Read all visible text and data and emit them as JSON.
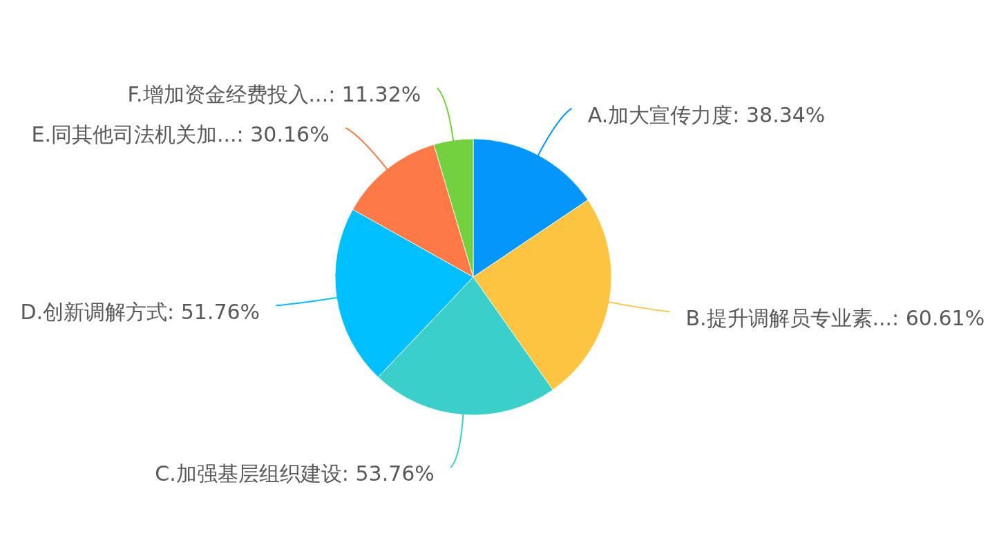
{
  "chart_data": {
    "type": "pie",
    "categories": [
      "A.加大宣传力度",
      "B.提升调解员专业素...",
      "C.加强基层组织建设",
      "D.创新调解方式",
      "E.同其他司法机关加...",
      "F.增加资金经费投入..."
    ],
    "values": [
      38.34,
      60.61,
      53.76,
      51.76,
      30.16,
      11.32
    ],
    "colors": [
      "#0596fb",
      "#fdc441",
      "#3acfc9",
      "#00bffe",
      "#fd7a47",
      "#73d13d"
    ],
    "value_labels": [
      "38.34%",
      "60.61%",
      "53.76%",
      "51.76%",
      "30.16%",
      "11.32%"
    ]
  }
}
